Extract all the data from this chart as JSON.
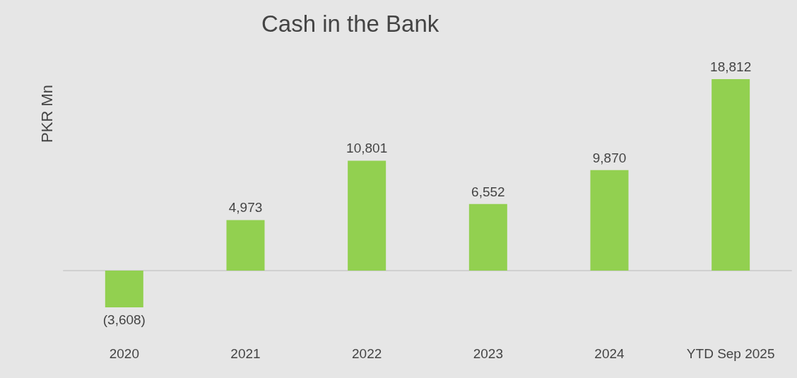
{
  "chart_data": {
    "type": "bar",
    "title": "Cash in the Bank",
    "ylabel": "PKR Mn",
    "categories": [
      "2020",
      "2021",
      "2022",
      "2023",
      "2024",
      "YTD Sep 2025"
    ],
    "values": [
      -3608,
      4973,
      10801,
      6552,
      9870,
      18812
    ],
    "value_labels": [
      "(3,608)",
      "4,973",
      "10,801",
      "6,552",
      "9,870",
      "18,812"
    ],
    "color": "#92d050"
  }
}
